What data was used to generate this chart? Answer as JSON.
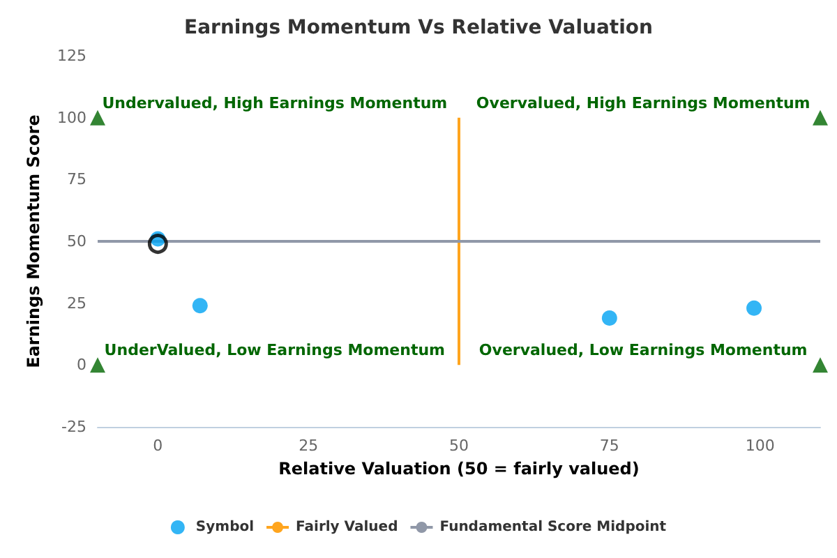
{
  "chart_data": {
    "type": "scatter",
    "title": "Earnings Momentum Vs Relative Valuation",
    "xlabel": "Relative Valuation (50 = fairly valued)",
    "ylabel": "Earnings Momentum Score",
    "xlim": [
      -10,
      110
    ],
    "xticks": [
      0,
      25,
      50,
      75,
      100
    ],
    "ylim": [
      -25,
      125
    ],
    "yticks": [
      -25,
      0,
      25,
      50,
      75,
      100,
      125
    ],
    "grid": false,
    "legend": "bottom",
    "series": [
      {
        "name": "Symbol",
        "color": "#00a2f2",
        "marker": "circle",
        "x": [
          0,
          7,
          75,
          99
        ],
        "values": [
          51,
          24,
          19,
          23
        ]
      },
      {
        "color": "#000000",
        "marker": "circle",
        "x": [
          0
        ],
        "values": [
          49
        ]
      },
      {
        "name": "Fairly Valued",
        "type": "line",
        "color": "#ffa51e",
        "marker": "none",
        "x": [
          50,
          50
        ],
        "values": [
          0,
          100
        ]
      },
      {
        "name": "Fundamental Score Midpoint",
        "type": "line",
        "color": "#9098a8",
        "marker": "none",
        "x": [
          -10,
          110
        ],
        "values": [
          50,
          50
        ]
      },
      {
        "color": "#006600",
        "marker": "triangle",
        "x": [
          -10,
          110,
          -10,
          110
        ],
        "values": [
          100,
          100,
          0,
          0
        ]
      }
    ],
    "annotations": [
      "Undervalued, High Earnings Momentum",
      "Overvalued, High Earnings Momentum",
      "UnderValued, Low Earnings Momentum",
      "Overvalued, Low Earnings Momentum"
    ]
  }
}
